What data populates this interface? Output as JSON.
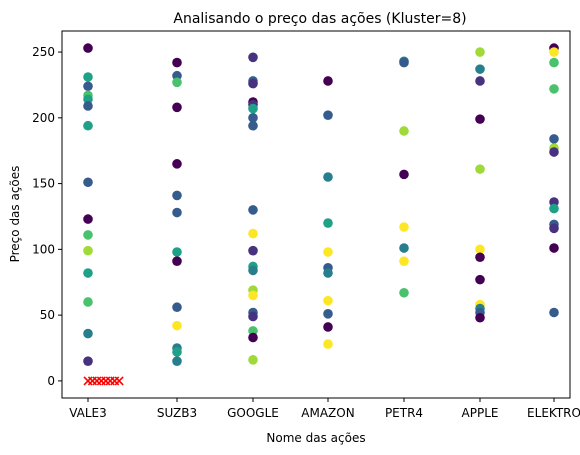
{
  "chart_data": {
    "type": "scatter",
    "title": "Analisando o preço das ações (Kluster=8)",
    "xlabel": "Nome das ações",
    "ylabel": "Preço das ações",
    "categories": [
      "VALE3",
      "SUZB3",
      "GOOGLE",
      "AMAZON",
      "PETR4",
      "APPLE",
      "ELEKTRO"
    ],
    "ylim": [
      -13,
      266
    ],
    "yticks": [
      0,
      50,
      100,
      150,
      200,
      250
    ],
    "grid": false,
    "legend": "none",
    "cluster_colors": [
      "#440154",
      "#46327e",
      "#365c8d",
      "#277f8e",
      "#1fa187",
      "#4ac16d",
      "#a0da39",
      "#fde725"
    ],
    "centroid_marker": "x",
    "centroid_color": "#ff0000",
    "points": [
      {
        "x": "VALE3",
        "y": 253,
        "cluster": 0
      },
      {
        "x": "VALE3",
        "y": 231,
        "cluster": 4
      },
      {
        "x": "VALE3",
        "y": 224,
        "cluster": 2
      },
      {
        "x": "VALE3",
        "y": 217,
        "cluster": 5
      },
      {
        "x": "VALE3",
        "y": 214,
        "cluster": 4
      },
      {
        "x": "VALE3",
        "y": 209,
        "cluster": 2
      },
      {
        "x": "VALE3",
        "y": 194,
        "cluster": 4
      },
      {
        "x": "VALE3",
        "y": 151,
        "cluster": 2
      },
      {
        "x": "VALE3",
        "y": 123,
        "cluster": 0
      },
      {
        "x": "VALE3",
        "y": 111,
        "cluster": 5
      },
      {
        "x": "VALE3",
        "y": 99,
        "cluster": 6
      },
      {
        "x": "VALE3",
        "y": 82,
        "cluster": 4
      },
      {
        "x": "VALE3",
        "y": 60,
        "cluster": 5
      },
      {
        "x": "VALE3",
        "y": 36,
        "cluster": 3
      },
      {
        "x": "VALE3",
        "y": 15,
        "cluster": 1
      },
      {
        "x": "SUZB3",
        "y": 242,
        "cluster": 0
      },
      {
        "x": "SUZB3",
        "y": 232,
        "cluster": 2
      },
      {
        "x": "SUZB3",
        "y": 227,
        "cluster": 5
      },
      {
        "x": "SUZB3",
        "y": 208,
        "cluster": 0
      },
      {
        "x": "SUZB3",
        "y": 165,
        "cluster": 0
      },
      {
        "x": "SUZB3",
        "y": 141,
        "cluster": 2
      },
      {
        "x": "SUZB3",
        "y": 128,
        "cluster": 2
      },
      {
        "x": "SUZB3",
        "y": 98,
        "cluster": 4
      },
      {
        "x": "SUZB3",
        "y": 91,
        "cluster": 0
      },
      {
        "x": "SUZB3",
        "y": 56,
        "cluster": 2
      },
      {
        "x": "SUZB3",
        "y": 42,
        "cluster": 7
      },
      {
        "x": "SUZB3",
        "y": 25,
        "cluster": 3
      },
      {
        "x": "SUZB3",
        "y": 22,
        "cluster": 4
      },
      {
        "x": "SUZB3",
        "y": 15,
        "cluster": 3
      },
      {
        "x": "GOOGLE",
        "y": 246,
        "cluster": 1
      },
      {
        "x": "GOOGLE",
        "y": 228,
        "cluster": 2
      },
      {
        "x": "GOOGLE",
        "y": 226,
        "cluster": 1
      },
      {
        "x": "GOOGLE",
        "y": 212,
        "cluster": 0
      },
      {
        "x": "GOOGLE",
        "y": 210,
        "cluster": 1
      },
      {
        "x": "GOOGLE",
        "y": 207,
        "cluster": 4
      },
      {
        "x": "GOOGLE",
        "y": 200,
        "cluster": 2
      },
      {
        "x": "GOOGLE",
        "y": 194,
        "cluster": 2
      },
      {
        "x": "GOOGLE",
        "y": 130,
        "cluster": 2
      },
      {
        "x": "GOOGLE",
        "y": 112,
        "cluster": 7
      },
      {
        "x": "GOOGLE",
        "y": 99,
        "cluster": 1
      },
      {
        "x": "GOOGLE",
        "y": 87,
        "cluster": 4
      },
      {
        "x": "GOOGLE",
        "y": 84,
        "cluster": 3
      },
      {
        "x": "GOOGLE",
        "y": 69,
        "cluster": 6
      },
      {
        "x": "GOOGLE",
        "y": 65,
        "cluster": 7
      },
      {
        "x": "GOOGLE",
        "y": 52,
        "cluster": 2
      },
      {
        "x": "GOOGLE",
        "y": 49,
        "cluster": 1
      },
      {
        "x": "GOOGLE",
        "y": 38,
        "cluster": 5
      },
      {
        "x": "GOOGLE",
        "y": 33,
        "cluster": 0
      },
      {
        "x": "GOOGLE",
        "y": 16,
        "cluster": 6
      },
      {
        "x": "AMAZON",
        "y": 228,
        "cluster": 0
      },
      {
        "x": "AMAZON",
        "y": 202,
        "cluster": 2
      },
      {
        "x": "AMAZON",
        "y": 155,
        "cluster": 3
      },
      {
        "x": "AMAZON",
        "y": 120,
        "cluster": 4
      },
      {
        "x": "AMAZON",
        "y": 98,
        "cluster": 7
      },
      {
        "x": "AMAZON",
        "y": 86,
        "cluster": 2
      },
      {
        "x": "AMAZON",
        "y": 82,
        "cluster": 3
      },
      {
        "x": "AMAZON",
        "y": 61,
        "cluster": 7
      },
      {
        "x": "AMAZON",
        "y": 51,
        "cluster": 2
      },
      {
        "x": "AMAZON",
        "y": 41,
        "cluster": 0
      },
      {
        "x": "AMAZON",
        "y": 28,
        "cluster": 7
      },
      {
        "x": "PETR4",
        "y": 243,
        "cluster": 3
      },
      {
        "x": "PETR4",
        "y": 242,
        "cluster": 2
      },
      {
        "x": "PETR4",
        "y": 190,
        "cluster": 6
      },
      {
        "x": "PETR4",
        "y": 157,
        "cluster": 0
      },
      {
        "x": "PETR4",
        "y": 117,
        "cluster": 7
      },
      {
        "x": "PETR4",
        "y": 101,
        "cluster": 3
      },
      {
        "x": "PETR4",
        "y": 91,
        "cluster": 7
      },
      {
        "x": "PETR4",
        "y": 67,
        "cluster": 5
      },
      {
        "x": "APPLE",
        "y": 250,
        "cluster": 6
      },
      {
        "x": "APPLE",
        "y": 237,
        "cluster": 3
      },
      {
        "x": "APPLE",
        "y": 228,
        "cluster": 1
      },
      {
        "x": "APPLE",
        "y": 199,
        "cluster": 0
      },
      {
        "x": "APPLE",
        "y": 161,
        "cluster": 6
      },
      {
        "x": "APPLE",
        "y": 100,
        "cluster": 7
      },
      {
        "x": "APPLE",
        "y": 94,
        "cluster": 0
      },
      {
        "x": "APPLE",
        "y": 77,
        "cluster": 0
      },
      {
        "x": "APPLE",
        "y": 58,
        "cluster": 7
      },
      {
        "x": "APPLE",
        "y": 55,
        "cluster": 3
      },
      {
        "x": "APPLE",
        "y": 52,
        "cluster": 2
      },
      {
        "x": "APPLE",
        "y": 48,
        "cluster": 0
      },
      {
        "x": "ELEKTRO",
        "y": 253,
        "cluster": 0
      },
      {
        "x": "ELEKTRO",
        "y": 250,
        "cluster": 7
      },
      {
        "x": "ELEKTRO",
        "y": 242,
        "cluster": 5
      },
      {
        "x": "ELEKTRO",
        "y": 222,
        "cluster": 5
      },
      {
        "x": "ELEKTRO",
        "y": 184,
        "cluster": 2
      },
      {
        "x": "ELEKTRO",
        "y": 177,
        "cluster": 6
      },
      {
        "x": "ELEKTRO",
        "y": 174,
        "cluster": 1
      },
      {
        "x": "ELEKTRO",
        "y": 136,
        "cluster": 1
      },
      {
        "x": "ELEKTRO",
        "y": 131,
        "cluster": 4
      },
      {
        "x": "ELEKTRO",
        "y": 119,
        "cluster": 2
      },
      {
        "x": "ELEKTRO",
        "y": 116,
        "cluster": 1
      },
      {
        "x": "ELEKTRO",
        "y": 101,
        "cluster": 0
      },
      {
        "x": "ELEKTRO",
        "y": 52,
        "cluster": 2
      }
    ],
    "centroids": [
      {
        "x": 0.0,
        "y": 0
      },
      {
        "x": 0.05,
        "y": 0
      },
      {
        "x": 0.1,
        "y": 0
      },
      {
        "x": 0.15,
        "y": 0
      },
      {
        "x": 0.2,
        "y": 0
      },
      {
        "x": 0.25,
        "y": 0
      },
      {
        "x": 0.3,
        "y": 0
      },
      {
        "x": 0.35,
        "y": 0
      }
    ]
  }
}
